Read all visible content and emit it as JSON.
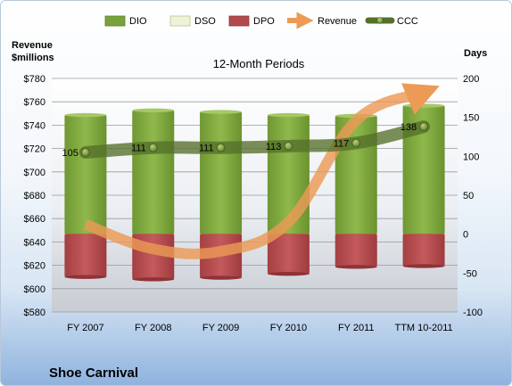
{
  "chart_data": {
    "type": "bar",
    "title": "12-Month Periods",
    "company": "Shoe Carnival",
    "left_axis_label_line1": "Revenue",
    "left_axis_label_line2": "$millions",
    "right_axis_label": "Days",
    "categories": [
      "FY 2007",
      "FY 2008",
      "FY 2009",
      "FY 2010",
      "FY 2011",
      "TTM 10-2011"
    ],
    "left_ylim": [
      580,
      780
    ],
    "left_ticks": [
      580,
      600,
      620,
      640,
      660,
      680,
      700,
      720,
      740,
      760,
      780
    ],
    "left_tick_labels": [
      "$580",
      "$600",
      "$620",
      "$640",
      "$660",
      "$680",
      "$700",
      "$720",
      "$740",
      "$760",
      "$780"
    ],
    "right_ylim": [
      -100,
      200
    ],
    "right_ticks": [
      -100,
      -50,
      0,
      50,
      100,
      150,
      200
    ],
    "right_tick_labels": [
      "-100",
      "-50",
      "0",
      "50",
      "100",
      "150",
      "200"
    ],
    "legend_position": "top",
    "series": [
      {
        "name": "DIO",
        "axis": "right",
        "kind": "bar-positive",
        "color": "#7aa23c",
        "values": [
          153,
          159,
          157,
          153,
          152,
          165
        ]
      },
      {
        "name": "DSO",
        "axis": "right",
        "kind": "bar-positive",
        "color": "#eef3d8",
        "values": [
          0,
          0,
          0,
          0,
          0,
          0
        ]
      },
      {
        "name": "DPO",
        "axis": "right",
        "kind": "bar-negative",
        "color": "#b24a4d",
        "values": [
          -55,
          -58,
          -56,
          -51,
          -42,
          -41
        ]
      },
      {
        "name": "Revenue",
        "axis": "left",
        "kind": "line",
        "color": "#ec9a56",
        "values": [
          655,
          634,
          632,
          657,
          744,
          768
        ]
      },
      {
        "name": "CCC",
        "axis": "right",
        "kind": "line-markers",
        "color": "#55702a",
        "values": [
          105,
          111,
          111,
          113,
          117,
          138
        ],
        "labels": [
          "105",
          "111",
          "111",
          "113",
          "117",
          "138"
        ]
      }
    ]
  },
  "colors": {
    "dio": "#7aa23c",
    "dso": "#eef3d8",
    "dpo": "#b24a4d",
    "revenue": "#ec9a56",
    "ccc": "#55702a"
  }
}
